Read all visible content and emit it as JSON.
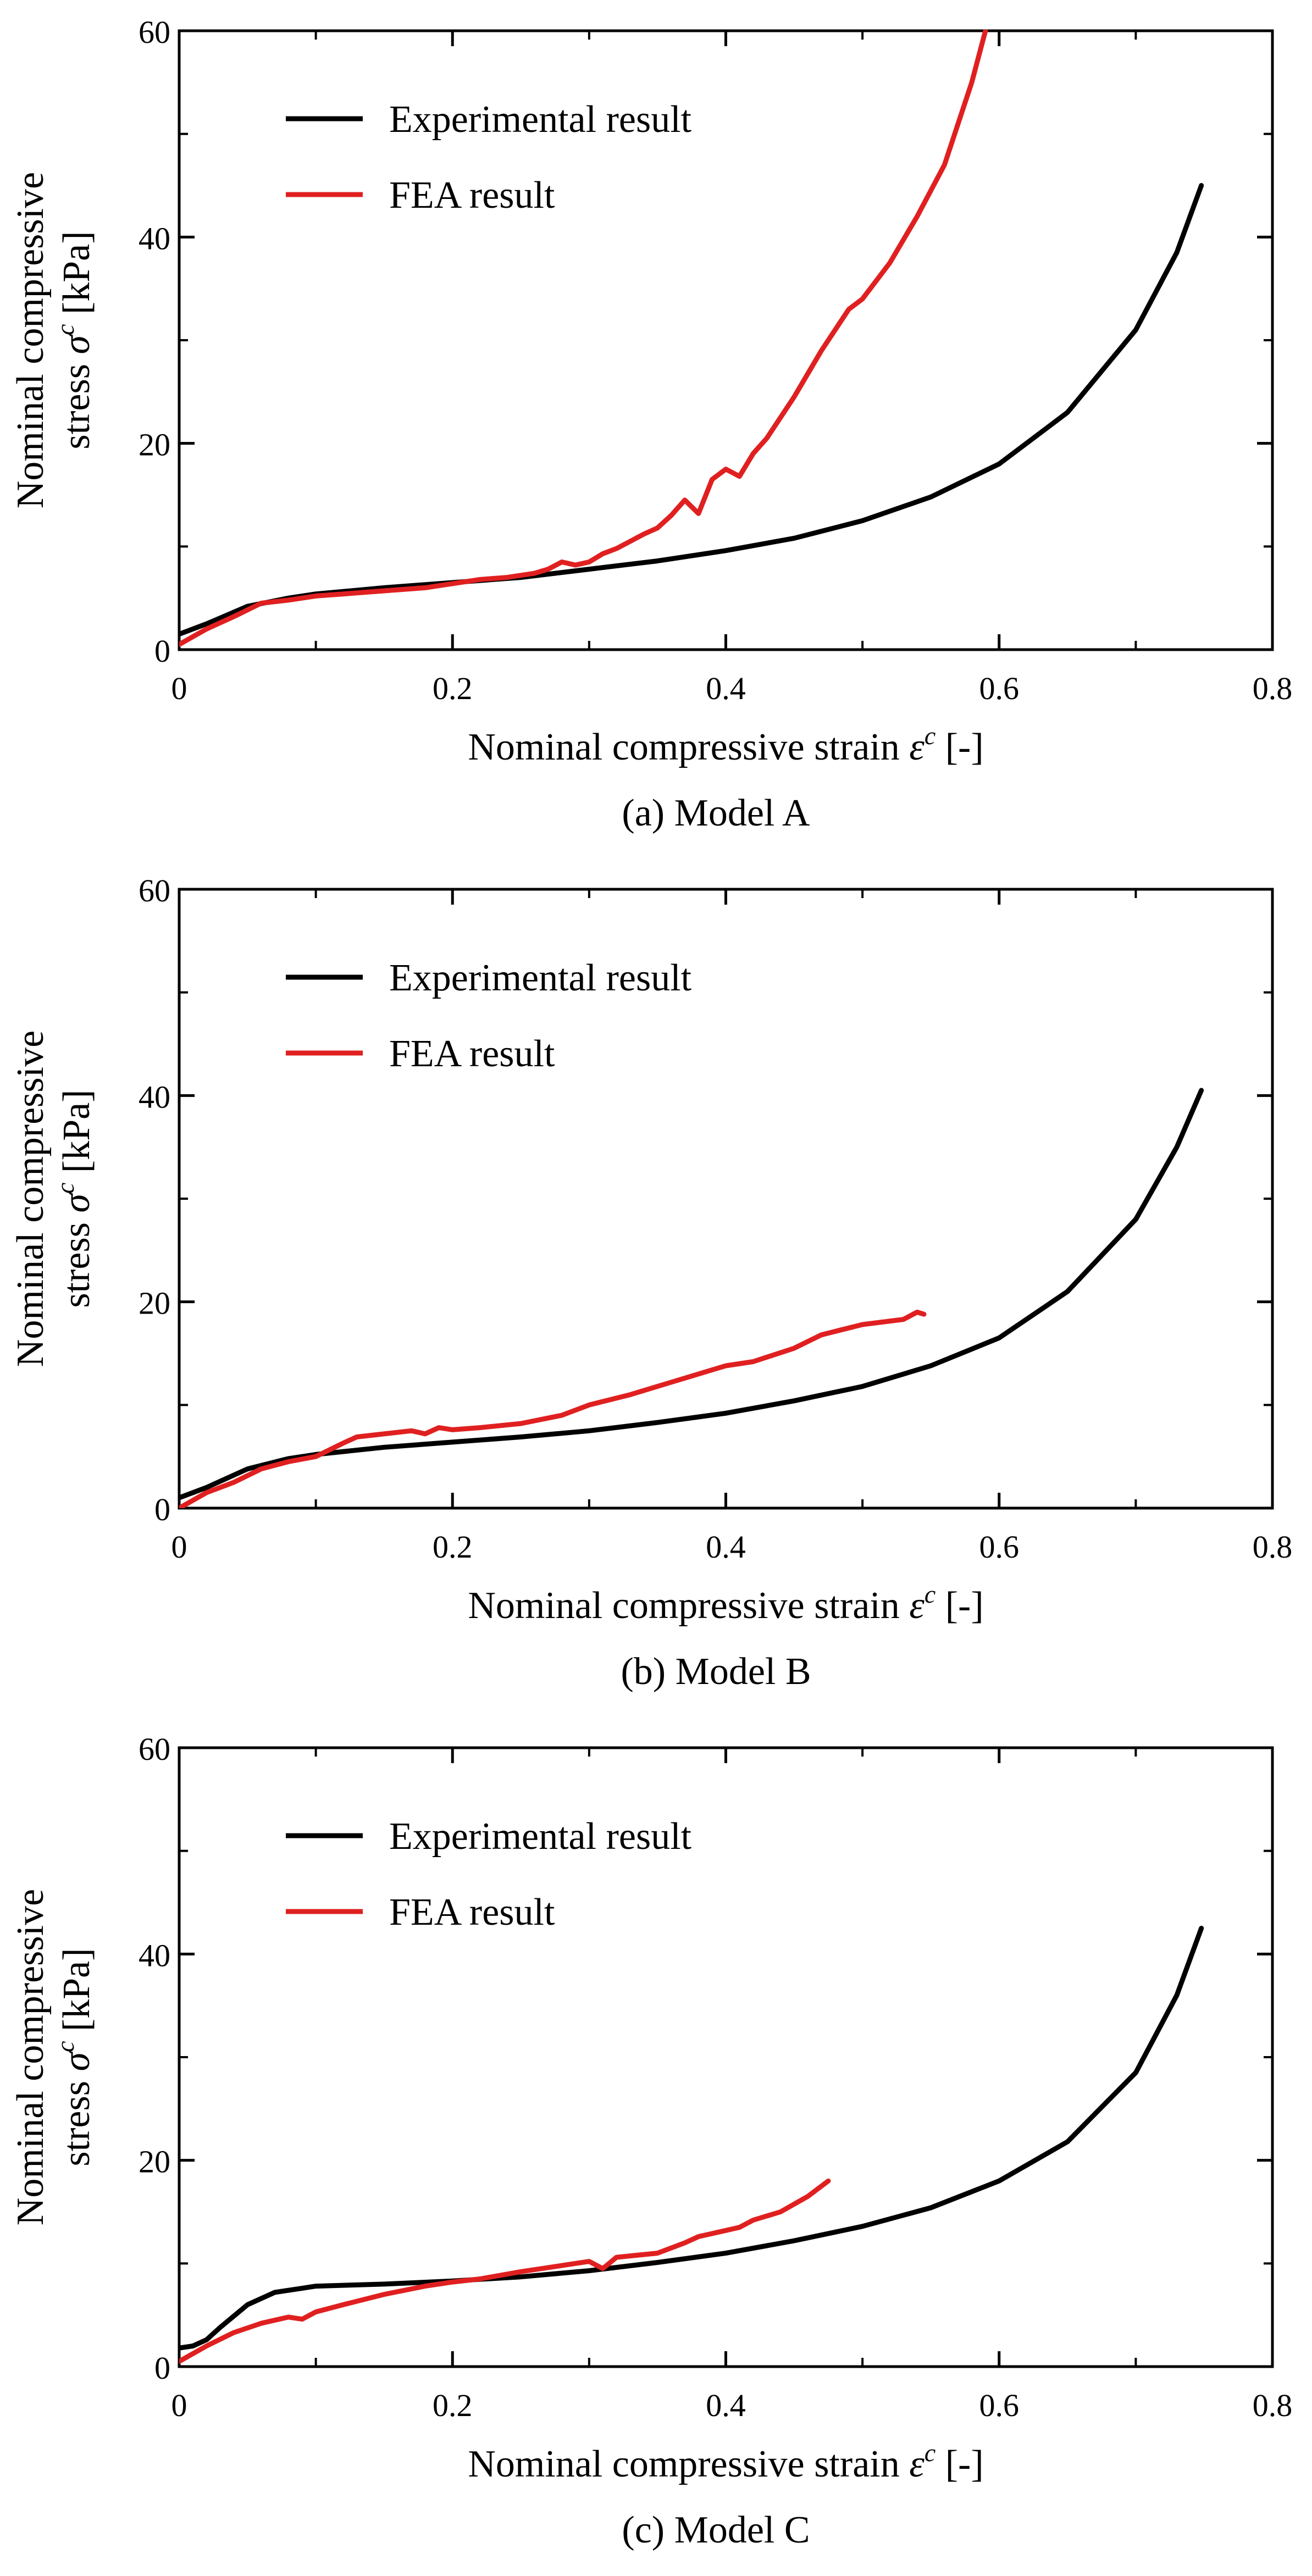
{
  "colors": {
    "experimental": "#000000",
    "fea": "#e02020",
    "axis": "#000000"
  },
  "charts": [
    {
      "caption": "(a) Model A",
      "chart_data": {
        "type": "line",
        "xlabel": "Nominal compressive strain",
        "xlabel_symbol": "ε",
        "xlabel_sup": "c",
        "xlabel_unit": "[-]",
        "ylabel_line1": "Nominal compressive",
        "ylabel_line2_prefix": "stress ",
        "ylabel_symbol": "σ",
        "ylabel_sup": "c",
        "ylabel_unit": "[kPa]",
        "xlim": [
          0,
          0.8
        ],
        "ylim": [
          0,
          60
        ],
        "xticks": [
          0,
          0.2,
          0.4,
          0.6,
          0.8
        ],
        "yticks": [
          0,
          20,
          40,
          60
        ],
        "legend": "top-left",
        "series": [
          {
            "name": "Experimental result",
            "color_key": "experimental",
            "x": [
              0,
              0.02,
              0.05,
              0.08,
              0.1,
              0.15,
              0.2,
              0.25,
              0.3,
              0.35,
              0.4,
              0.45,
              0.5,
              0.55,
              0.6,
              0.65,
              0.7,
              0.73,
              0.748
            ],
            "y": [
              1.5,
              2.5,
              4.2,
              5.0,
              5.4,
              6.0,
              6.5,
              7.0,
              7.8,
              8.6,
              9.6,
              10.8,
              12.5,
              14.8,
              18.0,
              23.0,
              31.0,
              38.5,
              45
            ]
          },
          {
            "name": "FEA result",
            "color_key": "fea",
            "x": [
              0,
              0.02,
              0.04,
              0.06,
              0.08,
              0.1,
              0.12,
              0.15,
              0.18,
              0.2,
              0.22,
              0.24,
              0.26,
              0.27,
              0.28,
              0.29,
              0.3,
              0.31,
              0.32,
              0.33,
              0.34,
              0.35,
              0.36,
              0.37,
              0.38,
              0.39,
              0.4,
              0.41,
              0.42,
              0.43,
              0.45,
              0.47,
              0.49,
              0.5,
              0.52,
              0.54,
              0.56,
              0.58,
              0.59
            ],
            "y": [
              0.5,
              2.0,
              3.2,
              4.5,
              4.8,
              5.2,
              5.4,
              5.7,
              6.0,
              6.4,
              6.8,
              7.0,
              7.4,
              7.8,
              8.5,
              8.2,
              8.5,
              9.3,
              9.8,
              10.5,
              11.2,
              11.8,
              13.0,
              14.5,
              13.2,
              16.5,
              17.5,
              16.8,
              19.0,
              20.5,
              24.5,
              29.0,
              33.0,
              34.0,
              37.5,
              42.0,
              47.0,
              55.0,
              60.0
            ]
          }
        ]
      }
    },
    {
      "caption": "(b) Model B",
      "chart_data": {
        "type": "line",
        "xlabel": "Nominal compressive strain",
        "xlabel_symbol": "ε",
        "xlabel_sup": "c",
        "xlabel_unit": "[-]",
        "ylabel_line1": "Nominal compressive",
        "ylabel_line2_prefix": "stress ",
        "ylabel_symbol": "σ",
        "ylabel_sup": "c",
        "ylabel_unit": "[kPa]",
        "xlim": [
          0,
          0.8
        ],
        "ylim": [
          0,
          60
        ],
        "xticks": [
          0,
          0.2,
          0.4,
          0.6,
          0.8
        ],
        "yticks": [
          0,
          20,
          40,
          60
        ],
        "legend": "top-left",
        "series": [
          {
            "name": "Experimental result",
            "color_key": "experimental",
            "x": [
              0,
              0.02,
              0.05,
              0.08,
              0.1,
              0.15,
              0.2,
              0.25,
              0.3,
              0.35,
              0.4,
              0.45,
              0.5,
              0.55,
              0.6,
              0.65,
              0.7,
              0.73,
              0.748
            ],
            "y": [
              1.0,
              2.0,
              3.8,
              4.8,
              5.2,
              5.9,
              6.4,
              6.9,
              7.5,
              8.3,
              9.2,
              10.4,
              11.8,
              13.8,
              16.5,
              21.0,
              28.0,
              35.0,
              40.5
            ]
          },
          {
            "name": "FEA result",
            "color_key": "fea",
            "x": [
              0,
              0.02,
              0.04,
              0.06,
              0.08,
              0.1,
              0.12,
              0.13,
              0.15,
              0.17,
              0.18,
              0.19,
              0.2,
              0.22,
              0.25,
              0.28,
              0.3,
              0.33,
              0.36,
              0.4,
              0.42,
              0.45,
              0.47,
              0.5,
              0.53,
              0.54,
              0.545
            ],
            "y": [
              0,
              1.5,
              2.5,
              3.8,
              4.5,
              5.0,
              6.3,
              6.9,
              7.2,
              7.5,
              7.2,
              7.8,
              7.6,
              7.8,
              8.2,
              9.0,
              10.0,
              11.0,
              12.2,
              13.8,
              14.2,
              15.5,
              16.8,
              17.8,
              18.3,
              19.0,
              18.8
            ]
          }
        ]
      }
    },
    {
      "caption": "(c) Model C",
      "chart_data": {
        "type": "line",
        "xlabel": "Nominal compressive strain",
        "xlabel_symbol": "ε",
        "xlabel_sup": "c",
        "xlabel_unit": "[-]",
        "ylabel_line1": "Nominal compressive",
        "ylabel_line2_prefix": "stress ",
        "ylabel_symbol": "σ",
        "ylabel_sup": "c",
        "ylabel_unit": "[kPa]",
        "xlim": [
          0,
          0.8
        ],
        "ylim": [
          0,
          60
        ],
        "xticks": [
          0,
          0.2,
          0.4,
          0.6,
          0.8
        ],
        "yticks": [
          0,
          20,
          40,
          60
        ],
        "legend": "top-left",
        "series": [
          {
            "name": "Experimental result",
            "color_key": "experimental",
            "x": [
              0,
              0.01,
              0.02,
              0.03,
              0.05,
              0.07,
              0.09,
              0.1,
              0.15,
              0.2,
              0.25,
              0.3,
              0.35,
              0.4,
              0.45,
              0.5,
              0.55,
              0.6,
              0.65,
              0.7,
              0.73,
              0.748
            ],
            "y": [
              1.8,
              2.0,
              2.6,
              3.8,
              6.0,
              7.2,
              7.6,
              7.8,
              8.0,
              8.3,
              8.7,
              9.3,
              10.1,
              11.0,
              12.2,
              13.6,
              15.4,
              18.0,
              21.8,
              28.5,
              36.0,
              42.5
            ]
          },
          {
            "name": "FEA result",
            "color_key": "fea",
            "x": [
              0,
              0.02,
              0.04,
              0.06,
              0.08,
              0.09,
              0.1,
              0.12,
              0.15,
              0.18,
              0.2,
              0.22,
              0.25,
              0.28,
              0.3,
              0.31,
              0.32,
              0.35,
              0.37,
              0.38,
              0.4,
              0.41,
              0.42,
              0.44,
              0.46,
              0.475
            ],
            "y": [
              0.5,
              2.0,
              3.3,
              4.2,
              4.8,
              4.6,
              5.3,
              6.0,
              7.0,
              7.8,
              8.2,
              8.5,
              9.2,
              9.8,
              10.2,
              9.5,
              10.6,
              11.0,
              12.0,
              12.6,
              13.2,
              13.5,
              14.2,
              15.0,
              16.5,
              18.0
            ]
          }
        ]
      }
    }
  ]
}
